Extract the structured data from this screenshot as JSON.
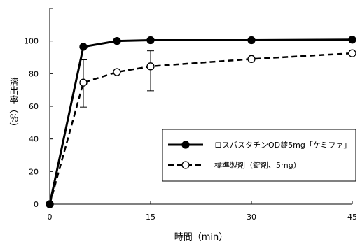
{
  "chart_data": {
    "type": "line",
    "xlabel": "時間（min）",
    "ylabel": "溶出率（％）",
    "xlim": [
      0,
      45
    ],
    "ylim": [
      0,
      120
    ],
    "xticks": [
      "0",
      "15",
      "30",
      "45"
    ],
    "yticks": [
      "0",
      "20",
      "40",
      "60",
      "80",
      "100"
    ],
    "grid": false,
    "legend_position": "bottom-right",
    "series": [
      {
        "name": "ロスバスタチンOD錠5mg「ケミファ」",
        "line": "solid",
        "marker": "filled-circle",
        "color": "#000000",
        "x": [
          0,
          5,
          10,
          15,
          30,
          45
        ],
        "y": [
          0,
          96.5,
          100,
          100.5,
          100.5,
          100.8
        ]
      },
      {
        "name": "標準製剤（錠剤、5mg）",
        "line": "dashed",
        "marker": "open-circle",
        "color": "#000000",
        "x": [
          0,
          5,
          10,
          15,
          30,
          45
        ],
        "y": [
          0,
          74.5,
          81,
          84.5,
          89,
          92.5
        ],
        "error_bars": [
          {
            "x": 5,
            "low": 59.5,
            "high": 88.5
          },
          {
            "x": 15,
            "low": 69.5,
            "high": 94
          }
        ]
      }
    ]
  }
}
